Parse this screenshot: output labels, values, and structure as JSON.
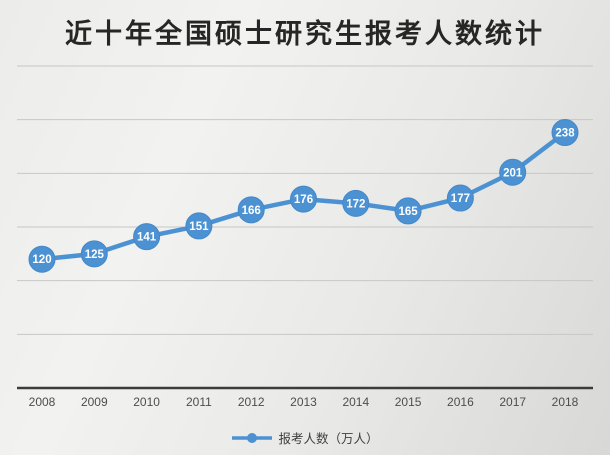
{
  "title": "近十年全国硕士研究生报考人数统计",
  "legend": {
    "label": "报考人数（万人）"
  },
  "chart_data": {
    "type": "line",
    "title": "近十年全国硕士研究生报考人数统计",
    "x": [
      "2008",
      "2009",
      "2010",
      "2011",
      "2012",
      "2013",
      "2014",
      "2015",
      "2016",
      "2017",
      "2018"
    ],
    "series": [
      {
        "name": "报考人数（万人）",
        "values": [
          120,
          125,
          141,
          151,
          166,
          176,
          172,
          165,
          177,
          201,
          238
        ]
      }
    ],
    "xlabel": "",
    "ylabel": "",
    "ylim": [
      0,
      300
    ],
    "gridline_step": 50,
    "grid": true,
    "y_axis_labels_visible": false,
    "data_labels": "inside-marker",
    "legend_position": "bottom",
    "colors": {
      "line": "#4c92d2",
      "marker_fill": "#4c92d2",
      "marker_edge": "#4488c8",
      "point_label_text": "#ffffff",
      "gridline": "#c7c7c5",
      "axis_line": "#3c3c3c",
      "tick_text": "#4d4d4d",
      "title_text": "#262626",
      "legend_text": "#404040"
    }
  }
}
